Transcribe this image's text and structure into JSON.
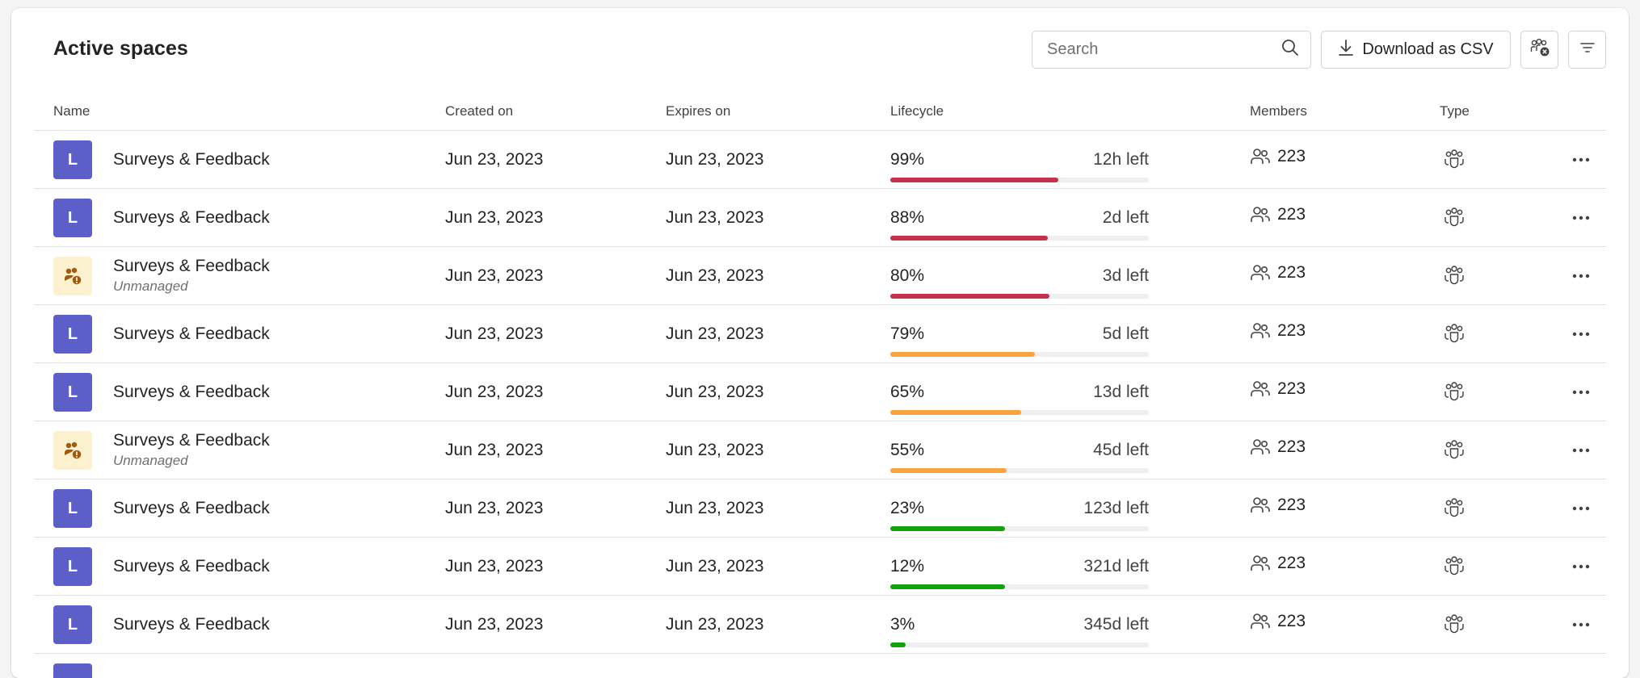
{
  "header": {
    "title": "Active spaces",
    "search_placeholder": "Search",
    "download_label": "Download as CSV"
  },
  "columns": {
    "name": "Name",
    "created": "Created on",
    "expires": "Expires on",
    "lifecycle": "Lifecycle",
    "members": "Members",
    "type": "Type"
  },
  "colors": {
    "critical": "#c4314b",
    "warning": "#f9a43f",
    "healthy": "#13a10e",
    "avatar": "#5b5fc7",
    "unmanaged_bg": "#fbf1cf",
    "unmanaged_icon": "#a4590f"
  },
  "rows": [
    {
      "initial": "L",
      "name": "Surveys & Feedback",
      "status": "",
      "unmanaged": false,
      "created": "Jun 23, 2023",
      "expires": "Jun 23, 2023",
      "pct": "99%",
      "fill": 0.65,
      "level": "critical",
      "remaining": "12h left",
      "members": "223"
    },
    {
      "initial": "L",
      "name": "Surveys & Feedback",
      "status": "",
      "unmanaged": false,
      "created": "Jun 23, 2023",
      "expires": "Jun 23, 2023",
      "pct": "88%",
      "fill": 0.61,
      "level": "critical",
      "remaining": "2d left",
      "members": "223"
    },
    {
      "initial": "",
      "name": "Surveys & Feedback",
      "status": "Unmanaged",
      "unmanaged": true,
      "created": "Jun 23, 2023",
      "expires": "Jun 23, 2023",
      "pct": "80%",
      "fill": 0.615,
      "level": "critical",
      "remaining": "3d left",
      "members": "223"
    },
    {
      "initial": "L",
      "name": "Surveys & Feedback",
      "status": "",
      "unmanaged": false,
      "created": "Jun 23, 2023",
      "expires": "Jun 23, 2023",
      "pct": "79%",
      "fill": 0.56,
      "level": "warning",
      "remaining": "5d left",
      "members": "223"
    },
    {
      "initial": "L",
      "name": "Surveys & Feedback",
      "status": "",
      "unmanaged": false,
      "created": "Jun 23, 2023",
      "expires": "Jun 23, 2023",
      "pct": "65%",
      "fill": 0.505,
      "level": "warning",
      "remaining": "13d left",
      "members": "223"
    },
    {
      "initial": "",
      "name": "Surveys & Feedback",
      "status": "Unmanaged",
      "unmanaged": true,
      "created": "Jun 23, 2023",
      "expires": "Jun 23, 2023",
      "pct": "55%",
      "fill": 0.45,
      "level": "warning",
      "remaining": "45d left",
      "members": "223"
    },
    {
      "initial": "L",
      "name": "Surveys & Feedback",
      "status": "",
      "unmanaged": false,
      "created": "Jun 23, 2023",
      "expires": "Jun 23, 2023",
      "pct": "23%",
      "fill": 0.445,
      "level": "healthy",
      "remaining": "123d left",
      "members": "223"
    },
    {
      "initial": "L",
      "name": "Surveys & Feedback",
      "status": "",
      "unmanaged": false,
      "created": "Jun 23, 2023",
      "expires": "Jun 23, 2023",
      "pct": "12%",
      "fill": 0.445,
      "level": "healthy",
      "remaining": "321d left",
      "members": "223"
    },
    {
      "initial": "L",
      "name": "Surveys & Feedback",
      "status": "",
      "unmanaged": false,
      "created": "Jun 23, 2023",
      "expires": "Jun 23, 2023",
      "pct": "3%",
      "fill": 0.06,
      "level": "healthy",
      "remaining": "345d left",
      "members": "223"
    },
    {
      "initial": "",
      "name": "",
      "status": "",
      "unmanaged": false,
      "created": "",
      "expires": "",
      "pct": "",
      "fill": 0,
      "level": "healthy",
      "remaining": "",
      "members": ""
    }
  ]
}
